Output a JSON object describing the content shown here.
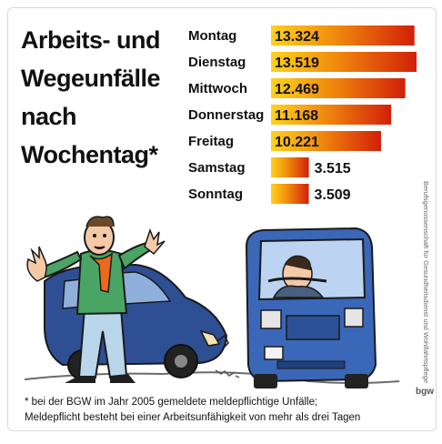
{
  "title": {
    "line1": "Arbeits- und",
    "line2": "Wegeunfälle",
    "line3": "nach",
    "line4": "Wochentag*"
  },
  "chart_data": {
    "type": "bar",
    "orientation": "horizontal",
    "categories": [
      "Montag",
      "Dienstag",
      "Mittwoch",
      "Donnerstag",
      "Freitag",
      "Samstag",
      "Sonntag"
    ],
    "values": [
      13324,
      13519,
      12469,
      11168,
      10221,
      3515,
      3509
    ],
    "value_labels": [
      "13.324",
      "13.519",
      "12.469",
      "11.168",
      "10.221",
      "3.515",
      "3.509"
    ],
    "title": "Arbeits- und Wegeunfälle nach Wochentag*",
    "xlabel": "",
    "ylabel": "",
    "grid": false,
    "legend": "none",
    "bar_gradient": [
      "#d21f0a",
      "#f08a0c",
      "#ffd21c"
    ]
  },
  "footnote": {
    "line1": "* bei der BGW im Jahr 2005 gemeldete meldepflichtige Unfälle;",
    "line2": "Meldepflicht besteht bei einer Arbeitsunfähigkeit von mehr als drei Tagen"
  },
  "credit": "Berufsgenossenschaft für Gesundheitsdienst und Wohlfahrtspflege",
  "logo": "bgw",
  "colors": {
    "car": "#2f4f94",
    "truck": "#3a67b8",
    "shirt": "#4aa564",
    "trousers": "#b9d6ea",
    "scarf": "#e96a1a"
  }
}
